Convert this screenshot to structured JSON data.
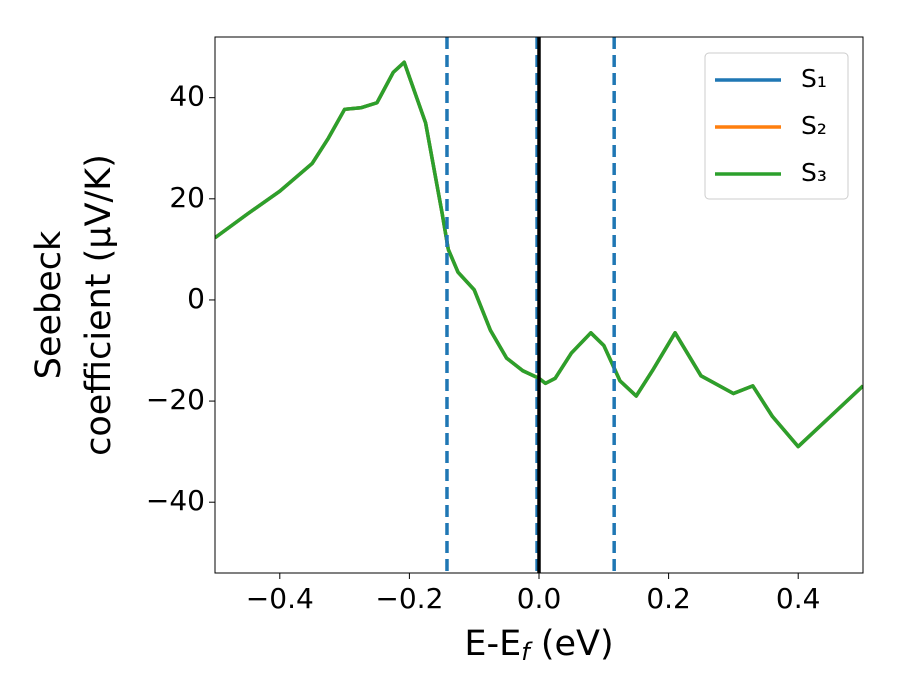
{
  "chart_data": {
    "type": "line",
    "xlabel": "E-E_f (eV)",
    "ylabel": [
      "Seebeck",
      "coefficient  (μV/K)"
    ],
    "x": [
      -0.5,
      -0.45,
      -0.4,
      -0.35,
      -0.325,
      -0.3,
      -0.275,
      -0.25,
      -0.225,
      -0.208,
      -0.175,
      -0.15,
      -0.14,
      -0.125,
      -0.1,
      -0.075,
      -0.05,
      -0.025,
      0,
      0.01,
      0.025,
      0.05,
      0.08,
      0.1,
      0.125,
      0.15,
      0.175,
      0.21,
      0.25,
      0.3,
      0.33,
      0.36,
      0.4,
      0.45,
      0.5
    ],
    "series": [
      {
        "name": "S₁",
        "color": "#1f77b4",
        "values": [
          12.3,
          17,
          21.5,
          27,
          32,
          37.7,
          38,
          39,
          45,
          47,
          35,
          17.5,
          10,
          5.5,
          2,
          -6,
          -11.5,
          -14,
          -15.5,
          -16.5,
          -15.5,
          -10.5,
          -6.5,
          -9,
          -16,
          -19,
          -14,
          -6.5,
          -15,
          -18.5,
          -17,
          -23,
          -29,
          -23,
          -17
        ]
      },
      {
        "name": "S₂",
        "color": "#ff7f0e",
        "values": [
          12.3,
          17,
          21.5,
          27,
          32,
          37.7,
          38,
          39,
          45,
          47,
          35,
          17.5,
          10,
          5.5,
          2,
          -6,
          -11.5,
          -14,
          -15.5,
          -16.5,
          -15.5,
          -10.5,
          -6.5,
          -9,
          -16,
          -19,
          -14,
          -6.5,
          -15,
          -18.5,
          -17,
          -23,
          -29,
          -23,
          -17
        ]
      },
      {
        "name": "S₃",
        "color": "#2ca02c",
        "values": [
          12.3,
          17,
          21.5,
          27,
          32,
          37.7,
          38,
          39,
          45,
          47,
          35,
          17.5,
          10,
          5.5,
          2,
          -6,
          -11.5,
          -14,
          -15.5,
          -16.5,
          -15.5,
          -10.5,
          -6.5,
          -9,
          -16,
          -19,
          -14,
          -6.5,
          -15,
          -18.5,
          -17,
          -23,
          -29,
          -23,
          -17
        ]
      }
    ],
    "vlines": [
      {
        "x": -0.142,
        "color": "#1f77b4",
        "style": "dashed"
      },
      {
        "x": 0.116,
        "color": "#1f77b4",
        "style": "dashed"
      },
      {
        "x": -0.003,
        "color": "#1f77b4",
        "style": "dashed"
      },
      {
        "x": 0,
        "color": "#000000",
        "style": "solid"
      }
    ],
    "xlim": [
      -0.5,
      0.5
    ],
    "ylim": [
      -54,
      52
    ],
    "xticks": [
      {
        "value": -0.4,
        "label": "−0.4"
      },
      {
        "value": -0.2,
        "label": "−0.2"
      },
      {
        "value": 0,
        "label": "0.0"
      },
      0.2,
      0.4
    ],
    "yticks": [
      {
        "value": -40,
        "label": "−40"
      },
      {
        "value": -20,
        "label": "−20"
      },
      0,
      20,
      40
    ],
    "legend": "upper right"
  }
}
